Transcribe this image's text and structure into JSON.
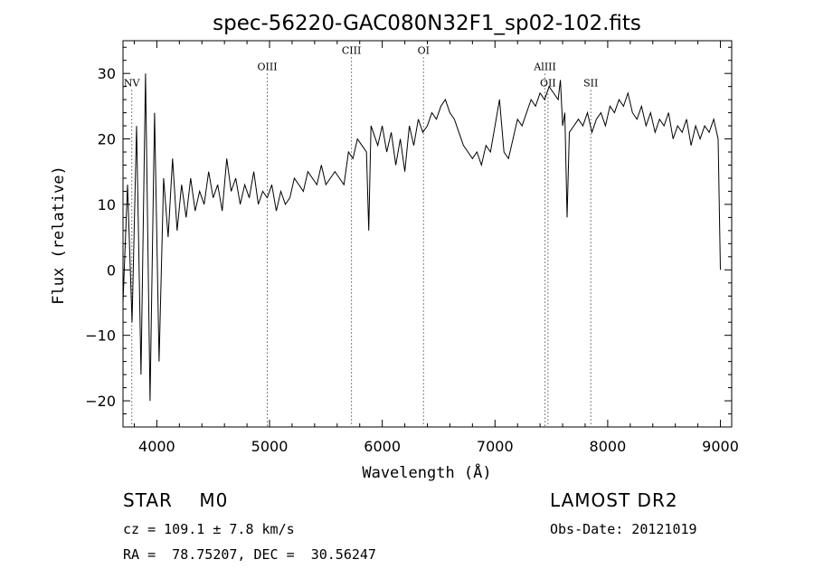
{
  "chart_data": {
    "type": "line",
    "title": "spec-56220-GAC080N32F1_sp02-102.fits",
    "xlabel": "Wavelength (Å)",
    "ylabel": "Flux (relative)",
    "xlim": [
      3700,
      9100
    ],
    "ylim": [
      -24,
      35
    ],
    "xticks": [
      4000,
      5000,
      6000,
      7000,
      8000,
      9000
    ],
    "yticks": [
      -20,
      -10,
      0,
      10,
      20,
      30
    ],
    "ytick_labels": [
      "−20",
      "−10",
      "0",
      "10",
      "20",
      "30"
    ],
    "grid": false,
    "lines": [
      {
        "label": "NV",
        "x": 3778,
        "label_y": 28
      },
      {
        "label": "OIII",
        "x": 4980,
        "label_y": 30.5
      },
      {
        "label": "CIII",
        "x": 5727,
        "label_y": 33
      },
      {
        "label": "OI",
        "x": 6366,
        "label_y": 33
      },
      {
        "label": "AlIII",
        "x": 7444,
        "label_y": 30.5
      },
      {
        "label": "OII",
        "x": 7470,
        "label_y": 28
      },
      {
        "label": "SII",
        "x": 7850,
        "label_y": 28
      }
    ],
    "series": [
      {
        "x": [
          3700,
          3740,
          3780,
          3820,
          3860,
          3900,
          3940,
          3980,
          4020,
          4060,
          4100,
          4140,
          4180,
          4220,
          4260,
          4300,
          4340,
          4380,
          4420,
          4460,
          4500,
          4540,
          4580,
          4620,
          4660,
          4700,
          4740,
          4780,
          4820,
          4860,
          4900,
          4940,
          4980,
          5020,
          5060,
          5100,
          5140,
          5180,
          5220,
          5260,
          5300,
          5340,
          5380,
          5420,
          5460,
          5500,
          5540,
          5580,
          5620,
          5660,
          5700,
          5740,
          5780,
          5820,
          5860,
          5880,
          5900,
          5920,
          5960,
          6000,
          6040,
          6080,
          6120,
          6160,
          6200,
          6240,
          6280,
          6320,
          6360,
          6400,
          6440,
          6480,
          6520,
          6560,
          6600,
          6640,
          6680,
          6720,
          6760,
          6800,
          6840,
          6880,
          6920,
          6960,
          7000,
          7040,
          7080,
          7120,
          7160,
          7200,
          7240,
          7280,
          7320,
          7360,
          7400,
          7440,
          7480,
          7520,
          7560,
          7580,
          7600,
          7620,
          7640,
          7660,
          7700,
          7740,
          7780,
          7820,
          7860,
          7900,
          7940,
          7980,
          8020,
          8060,
          8100,
          8140,
          8180,
          8220,
          8260,
          8300,
          8340,
          8380,
          8420,
          8460,
          8500,
          8540,
          8580,
          8620,
          8660,
          8700,
          8740,
          8780,
          8820,
          8860,
          8900,
          8940,
          8980,
          9000
        ],
        "y": [
          -5,
          13,
          -8,
          22,
          -16,
          30,
          -20,
          24,
          -14,
          14,
          5,
          17,
          6,
          13,
          8,
          14,
          9,
          12,
          10,
          15,
          11,
          13,
          9,
          17,
          12,
          14,
          10,
          13,
          11,
          15,
          10,
          12,
          11,
          13,
          9,
          12,
          10,
          11,
          14,
          13,
          12,
          15,
          14,
          13,
          16,
          13,
          14,
          15,
          14,
          13,
          18,
          17,
          20,
          19,
          18,
          6,
          22,
          21,
          19,
          22,
          18,
          21,
          16,
          20,
          15,
          22,
          19,
          23,
          21,
          22,
          24,
          23,
          25,
          26,
          24,
          23,
          21,
          19,
          18,
          17,
          18,
          16,
          19,
          18,
          22,
          26,
          18,
          17,
          20,
          23,
          22,
          24,
          26,
          25,
          27,
          26,
          28,
          27,
          26,
          29,
          22,
          24,
          8,
          21,
          22,
          23,
          22,
          24,
          21,
          23,
          24,
          22,
          25,
          24,
          26,
          25,
          27,
          24,
          23,
          25,
          22,
          24,
          21,
          23,
          22,
          24,
          20,
          22,
          21,
          23,
          19,
          22,
          20,
          22,
          21,
          23,
          20,
          0
        ]
      }
    ]
  },
  "info": {
    "object_class": "STAR    M0",
    "cz": "cz = 109.1 ± 7.8 km/s",
    "coords": "RA =  78.75207, DEC =  30.56247",
    "survey": "LAMOST DR2",
    "obs_date": "Obs-Date: 20121019"
  }
}
